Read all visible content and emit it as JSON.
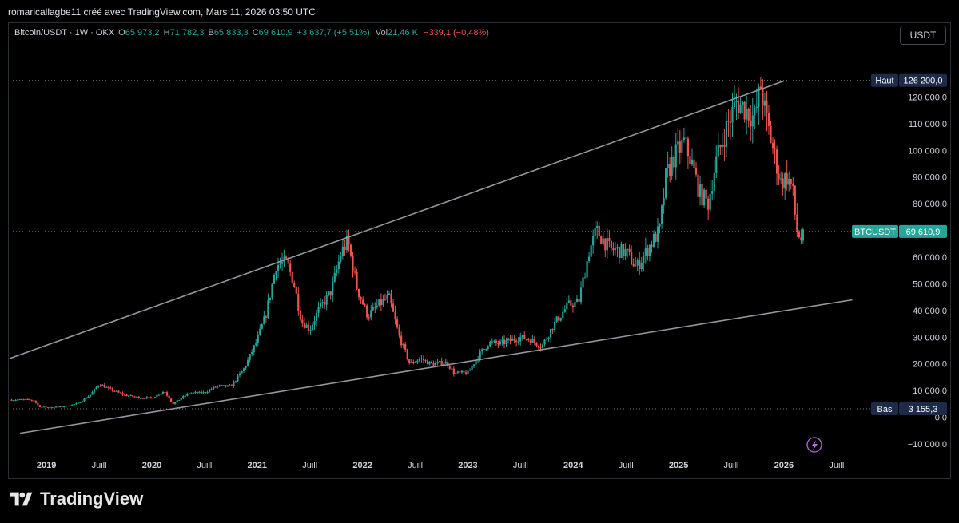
{
  "header": {
    "author_line": "romaricallagbe11 créé avec TradingView.com, Mars 11, 2026 03:50 UTC"
  },
  "legend": {
    "symbol": "Bitcoin/USDT · 1W · OKX",
    "o_label": "O",
    "o_value": "65 973,2",
    "h_label": "H",
    "h_value": "71 782,3",
    "b_label": "B",
    "b_value": "65 833,3",
    "c_label": "C",
    "c_value": "69 610,9",
    "change": "+3 637,7 (+5,51%)",
    "vol_label": "Vol",
    "vol_value": "21,46 K",
    "vol_change": "−339,1 (−0,48%)"
  },
  "unit_button": "USDT",
  "footer": {
    "brand": "TradingView"
  },
  "colors": {
    "up": "#26a69a",
    "down": "#ef5350",
    "line": "#9598a1",
    "price_tag": "#26a69a",
    "hilo_tag": "#1e2a4a"
  },
  "chart_data": {
    "type": "candlestick",
    "symbol": "BTCUSDT",
    "ylim": [
      -10000,
      130000
    ],
    "y_ticks": [
      -10000,
      0,
      10000,
      20000,
      30000,
      40000,
      50000,
      60000,
      70000,
      80000,
      90000,
      100000,
      110000,
      120000
    ],
    "y_tick_labels": [
      "−10 000,0",
      "0,0",
      "10 000,0",
      "20 000,0",
      "30 000,0",
      "40 000,0",
      "50 000,0",
      "60 000,0",
      "70 000,0",
      "80 000,0",
      "90 000,0",
      "100 000,0",
      "110 000,0",
      "120 000,0"
    ],
    "x_range": [
      2018.65,
      2026.85
    ],
    "x_ticks": [
      {
        "t": 2019.0,
        "label": "2019",
        "bold": true
      },
      {
        "t": 2019.5,
        "label": "Juill",
        "bold": false
      },
      {
        "t": 2020.0,
        "label": "2020",
        "bold": true
      },
      {
        "t": 2020.5,
        "label": "Juill",
        "bold": false
      },
      {
        "t": 2021.0,
        "label": "2021",
        "bold": true
      },
      {
        "t": 2021.5,
        "label": "Juill",
        "bold": false
      },
      {
        "t": 2022.0,
        "label": "2022",
        "bold": true
      },
      {
        "t": 2022.5,
        "label": "Juill",
        "bold": false
      },
      {
        "t": 2023.0,
        "label": "2023",
        "bold": true
      },
      {
        "t": 2023.5,
        "label": "Juill",
        "bold": false
      },
      {
        "t": 2024.0,
        "label": "2024",
        "bold": true
      },
      {
        "t": 2024.5,
        "label": "Juill",
        "bold": false
      },
      {
        "t": 2025.0,
        "label": "2025",
        "bold": true
      },
      {
        "t": 2025.5,
        "label": "Juill",
        "bold": false
      },
      {
        "t": 2026.0,
        "label": "2026",
        "bold": true
      },
      {
        "t": 2026.5,
        "label": "Juill",
        "bold": false
      }
    ],
    "price_path": [
      [
        2018.65,
        6500
      ],
      [
        2018.8,
        6600
      ],
      [
        2018.88,
        6300
      ],
      [
        2018.93,
        4000
      ],
      [
        2019.0,
        3700
      ],
      [
        2019.15,
        3900
      ],
      [
        2019.3,
        5200
      ],
      [
        2019.42,
        8500
      ],
      [
        2019.5,
        12500
      ],
      [
        2019.6,
        10500
      ],
      [
        2019.75,
        8200
      ],
      [
        2019.9,
        7300
      ],
      [
        2020.0,
        7200
      ],
      [
        2020.12,
        9800
      ],
      [
        2020.2,
        5000
      ],
      [
        2020.35,
        9000
      ],
      [
        2020.5,
        9200
      ],
      [
        2020.62,
        11700
      ],
      [
        2020.75,
        11500
      ],
      [
        2020.88,
        18500
      ],
      [
        2021.0,
        29000
      ],
      [
        2021.08,
        38000
      ],
      [
        2021.18,
        57000
      ],
      [
        2021.28,
        58000
      ],
      [
        2021.35,
        50000
      ],
      [
        2021.42,
        36000
      ],
      [
        2021.5,
        33000
      ],
      [
        2021.58,
        40000
      ],
      [
        2021.7,
        47000
      ],
      [
        2021.8,
        62000
      ],
      [
        2021.86,
        66000
      ],
      [
        2021.95,
        48000
      ],
      [
        2022.05,
        38000
      ],
      [
        2022.15,
        42000
      ],
      [
        2022.25,
        45000
      ],
      [
        2022.35,
        30000
      ],
      [
        2022.45,
        20000
      ],
      [
        2022.55,
        22000
      ],
      [
        2022.65,
        20000
      ],
      [
        2022.8,
        20500
      ],
      [
        2022.87,
        16500
      ],
      [
        2023.0,
        16600
      ],
      [
        2023.1,
        23000
      ],
      [
        2023.2,
        28000
      ],
      [
        2023.3,
        27500
      ],
      [
        2023.5,
        30000
      ],
      [
        2023.6,
        29000
      ],
      [
        2023.7,
        26500
      ],
      [
        2023.82,
        35000
      ],
      [
        2023.95,
        42000
      ],
      [
        2024.05,
        43000
      ],
      [
        2024.15,
        62000
      ],
      [
        2024.22,
        70000
      ],
      [
        2024.35,
        63000
      ],
      [
        2024.5,
        62000
      ],
      [
        2024.6,
        56000
      ],
      [
        2024.72,
        64000
      ],
      [
        2024.82,
        70000
      ],
      [
        2024.88,
        90000
      ],
      [
        2024.95,
        97000
      ],
      [
        2025.05,
        103000
      ],
      [
        2025.12,
        96000
      ],
      [
        2025.2,
        84000
      ],
      [
        2025.28,
        80000
      ],
      [
        2025.35,
        95000
      ],
      [
        2025.45,
        108000
      ],
      [
        2025.55,
        118000
      ],
      [
        2025.62,
        116000
      ],
      [
        2025.72,
        112000
      ],
      [
        2025.78,
        124000
      ],
      [
        2025.83,
        112000
      ],
      [
        2025.9,
        100000
      ],
      [
        2025.97,
        88000
      ],
      [
        2026.03,
        90000
      ],
      [
        2026.08,
        86000
      ],
      [
        2026.12,
        70000
      ],
      [
        2026.17,
        66000
      ],
      [
        2026.2,
        69610.9
      ]
    ],
    "trendlines": [
      {
        "name": "upper",
        "p1": [
          2018.65,
          22000
        ],
        "p2": [
          2026.0,
          126000
        ]
      },
      {
        "name": "lower",
        "p1": [
          2018.75,
          -6000
        ],
        "p2": [
          2026.65,
          44000
        ]
      }
    ],
    "price_markers": [
      {
        "label": "Haut",
        "value": 126200.0,
        "text": "126 200,0"
      },
      {
        "label": "BTCUSDT",
        "value": 69610.9,
        "text": "69 610,9"
      },
      {
        "label": "Bas",
        "value": 3155.3,
        "text": "3 155,3"
      }
    ]
  }
}
